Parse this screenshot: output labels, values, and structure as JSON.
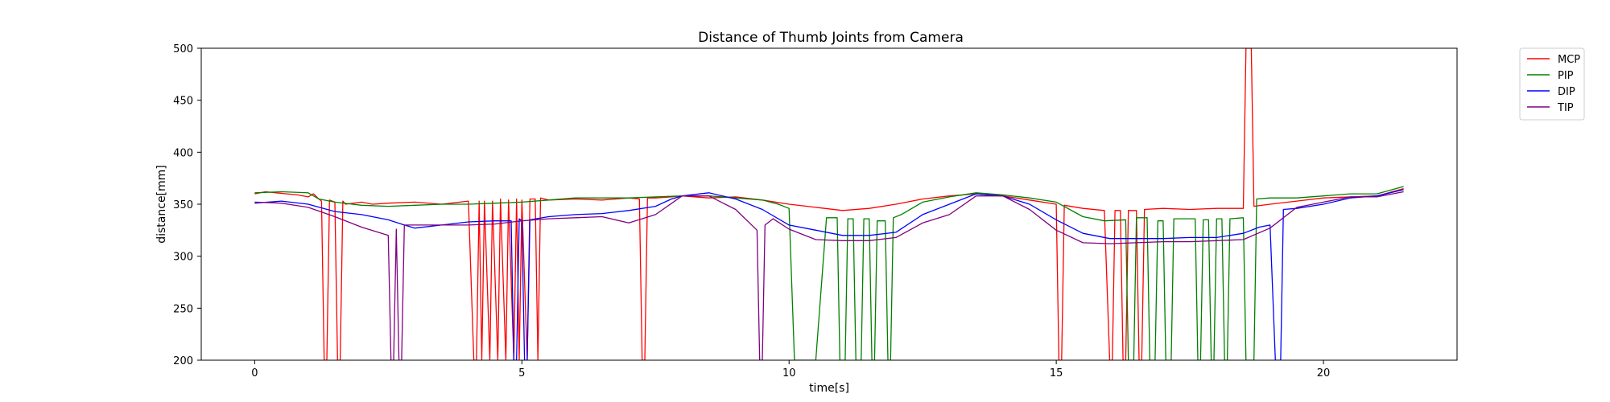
{
  "chart_data": {
    "type": "line",
    "title": "Distance of Thumb Joints from Camera",
    "xlabel": "time[s]",
    "ylabel": "distance[mm]",
    "xlim": [
      -1.0,
      22.5
    ],
    "ylim": [
      200,
      500
    ],
    "xticks": [
      0,
      5,
      10,
      15,
      20
    ],
    "yticks": [
      200,
      250,
      300,
      350,
      400,
      450,
      500
    ],
    "grid": false,
    "legend_position": "outside-top-right",
    "series": [
      {
        "name": "MCP",
        "color": "#ff0000",
        "points": [
          [
            0,
            360
          ],
          [
            0.2,
            362
          ],
          [
            0.4,
            361
          ],
          [
            0.6,
            360
          ],
          [
            0.8,
            359
          ],
          [
            1.0,
            357
          ],
          [
            1.1,
            360
          ],
          [
            1.2,
            355
          ],
          [
            1.25,
            353
          ],
          [
            1.3,
            200
          ],
          [
            1.35,
            200
          ],
          [
            1.4,
            354
          ],
          [
            1.5,
            352
          ],
          [
            1.55,
            200
          ],
          [
            1.6,
            200
          ],
          [
            1.65,
            353
          ],
          [
            1.7,
            350
          ],
          [
            2.0,
            352
          ],
          [
            2.2,
            350
          ],
          [
            2.5,
            351
          ],
          [
            3.0,
            352
          ],
          [
            3.5,
            350
          ],
          [
            4.0,
            353
          ],
          [
            4.1,
            200
          ],
          [
            4.15,
            200
          ],
          [
            4.2,
            353
          ],
          [
            4.25,
            200
          ],
          [
            4.3,
            353
          ],
          [
            4.4,
            200
          ],
          [
            4.45,
            353
          ],
          [
            4.55,
            200
          ],
          [
            4.6,
            355
          ],
          [
            4.7,
            200
          ],
          [
            4.75,
            354
          ],
          [
            4.85,
            200
          ],
          [
            4.9,
            355
          ],
          [
            4.95,
            200
          ],
          [
            5.0,
            354
          ],
          [
            5.1,
            200
          ],
          [
            5.15,
            355
          ],
          [
            5.25,
            355
          ],
          [
            5.3,
            200
          ],
          [
            5.35,
            356
          ],
          [
            5.5,
            354
          ],
          [
            6.0,
            355
          ],
          [
            6.5,
            354
          ],
          [
            7.0,
            356
          ],
          [
            7.2,
            355
          ],
          [
            7.25,
            200
          ],
          [
            7.3,
            200
          ],
          [
            7.35,
            356
          ],
          [
            7.5,
            356
          ],
          [
            7.8,
            357
          ],
          [
            8.0,
            358
          ],
          [
            8.5,
            356
          ],
          [
            9.0,
            357
          ],
          [
            9.5,
            354
          ],
          [
            10.0,
            350
          ],
          [
            10.5,
            347
          ],
          [
            11.0,
            344
          ],
          [
            11.5,
            346
          ],
          [
            12.0,
            350
          ],
          [
            12.5,
            355
          ],
          [
            13.0,
            358
          ],
          [
            13.5,
            360
          ],
          [
            14.0,
            358
          ],
          [
            14.5,
            354
          ],
          [
            15.0,
            350
          ],
          [
            15.05,
            200
          ],
          [
            15.1,
            200
          ],
          [
            15.15,
            349
          ],
          [
            15.5,
            346
          ],
          [
            15.9,
            344
          ],
          [
            16.0,
            200
          ],
          [
            16.05,
            200
          ],
          [
            16.1,
            344
          ],
          [
            16.2,
            344
          ],
          [
            16.25,
            200
          ],
          [
            16.3,
            200
          ],
          [
            16.35,
            344
          ],
          [
            16.5,
            344
          ],
          [
            16.55,
            200
          ],
          [
            16.6,
            200
          ],
          [
            16.65,
            345
          ],
          [
            17.0,
            346
          ],
          [
            17.5,
            345
          ],
          [
            18.0,
            346
          ],
          [
            18.5,
            346
          ],
          [
            18.55,
            500
          ],
          [
            18.65,
            500
          ],
          [
            18.7,
            348
          ],
          [
            19.0,
            350
          ],
          [
            19.5,
            353
          ],
          [
            20.0,
            356
          ],
          [
            20.5,
            357
          ],
          [
            21.0,
            358
          ],
          [
            21.5,
            365
          ]
        ]
      },
      {
        "name": "PIP",
        "color": "#008000",
        "points": [
          [
            0,
            361
          ],
          [
            0.5,
            362
          ],
          [
            1.0,
            361
          ],
          [
            1.2,
            355
          ],
          [
            1.5,
            352
          ],
          [
            2.0,
            349
          ],
          [
            2.5,
            348
          ],
          [
            3.0,
            349
          ],
          [
            3.5,
            350
          ],
          [
            4.0,
            350
          ],
          [
            4.5,
            351
          ],
          [
            5.0,
            352
          ],
          [
            5.5,
            354
          ],
          [
            6.0,
            356
          ],
          [
            6.5,
            356
          ],
          [
            7.0,
            356
          ],
          [
            7.5,
            357
          ],
          [
            8.0,
            358
          ],
          [
            8.5,
            358
          ],
          [
            9.0,
            356
          ],
          [
            9.5,
            354
          ],
          [
            9.8,
            350
          ],
          [
            10.0,
            346
          ],
          [
            10.1,
            200
          ],
          [
            10.5,
            200
          ],
          [
            10.7,
            337
          ],
          [
            10.9,
            337
          ],
          [
            10.95,
            200
          ],
          [
            11.05,
            200
          ],
          [
            11.1,
            336
          ],
          [
            11.2,
            336
          ],
          [
            11.25,
            200
          ],
          [
            11.35,
            200
          ],
          [
            11.4,
            336
          ],
          [
            11.5,
            336
          ],
          [
            11.55,
            200
          ],
          [
            11.6,
            200
          ],
          [
            11.65,
            334
          ],
          [
            11.8,
            334
          ],
          [
            11.85,
            200
          ],
          [
            11.9,
            200
          ],
          [
            11.95,
            337
          ],
          [
            12.1,
            340
          ],
          [
            12.5,
            352
          ],
          [
            13.0,
            357
          ],
          [
            13.5,
            361
          ],
          [
            14.0,
            359
          ],
          [
            14.5,
            356
          ],
          [
            15.0,
            352
          ],
          [
            15.5,
            338
          ],
          [
            15.9,
            334
          ],
          [
            16.3,
            335
          ],
          [
            16.35,
            200
          ],
          [
            16.45,
            200
          ],
          [
            16.5,
            337
          ],
          [
            16.7,
            337
          ],
          [
            16.75,
            200
          ],
          [
            16.85,
            200
          ],
          [
            16.9,
            334
          ],
          [
            17.0,
            334
          ],
          [
            17.05,
            200
          ],
          [
            17.15,
            200
          ],
          [
            17.2,
            336
          ],
          [
            17.6,
            336
          ],
          [
            17.65,
            200
          ],
          [
            17.7,
            200
          ],
          [
            17.75,
            335
          ],
          [
            17.85,
            335
          ],
          [
            17.9,
            200
          ],
          [
            17.95,
            200
          ],
          [
            18.0,
            336
          ],
          [
            18.1,
            336
          ],
          [
            18.15,
            200
          ],
          [
            18.2,
            200
          ],
          [
            18.25,
            336
          ],
          [
            18.5,
            337
          ],
          [
            18.55,
            200
          ],
          [
            18.7,
            200
          ],
          [
            18.75,
            355
          ],
          [
            19.0,
            356
          ],
          [
            19.5,
            356
          ],
          [
            20.0,
            358
          ],
          [
            20.5,
            360
          ],
          [
            21.0,
            360
          ],
          [
            21.5,
            367
          ]
        ]
      },
      {
        "name": "DIP",
        "color": "#0000ff",
        "points": [
          [
            0,
            351
          ],
          [
            0.5,
            353
          ],
          [
            1.0,
            350
          ],
          [
            1.5,
            343
          ],
          [
            2.0,
            340
          ],
          [
            2.5,
            335
          ],
          [
            2.8,
            330
          ],
          [
            3.0,
            327
          ],
          [
            3.5,
            330
          ],
          [
            4.0,
            333
          ],
          [
            4.5,
            334
          ],
          [
            4.8,
            334
          ],
          [
            4.85,
            200
          ],
          [
            4.9,
            200
          ],
          [
            4.95,
            336
          ],
          [
            5.0,
            334
          ],
          [
            5.05,
            200
          ],
          [
            5.1,
            200
          ],
          [
            5.15,
            335
          ],
          [
            5.5,
            338
          ],
          [
            6.0,
            340
          ],
          [
            6.5,
            341
          ],
          [
            7.0,
            344
          ],
          [
            7.5,
            348
          ],
          [
            7.8,
            355
          ],
          [
            8.0,
            358
          ],
          [
            8.5,
            361
          ],
          [
            9.0,
            355
          ],
          [
            9.5,
            345
          ],
          [
            10.0,
            330
          ],
          [
            10.5,
            325
          ],
          [
            11.0,
            320
          ],
          [
            11.5,
            320
          ],
          [
            12.0,
            323
          ],
          [
            12.5,
            340
          ],
          [
            13.0,
            350
          ],
          [
            13.5,
            360
          ],
          [
            14.0,
            358
          ],
          [
            14.5,
            350
          ],
          [
            15.0,
            335
          ],
          [
            15.5,
            322
          ],
          [
            16.0,
            317
          ],
          [
            16.5,
            317
          ],
          [
            17.0,
            317
          ],
          [
            17.5,
            318
          ],
          [
            18.0,
            318
          ],
          [
            18.5,
            322
          ],
          [
            18.8,
            328
          ],
          [
            19.0,
            330
          ],
          [
            19.1,
            200
          ],
          [
            19.2,
            200
          ],
          [
            19.25,
            345
          ],
          [
            19.5,
            346
          ],
          [
            20.0,
            350
          ],
          [
            20.5,
            356
          ],
          [
            21.0,
            358
          ],
          [
            21.5,
            364
          ]
        ]
      },
      {
        "name": "TIP",
        "color": "#800080",
        "points": [
          [
            0,
            352
          ],
          [
            0.5,
            351
          ],
          [
            1.0,
            347
          ],
          [
            1.5,
            338
          ],
          [
            2.0,
            328
          ],
          [
            2.5,
            320
          ],
          [
            2.55,
            200
          ],
          [
            2.6,
            200
          ],
          [
            2.65,
            326
          ],
          [
            2.7,
            200
          ],
          [
            2.75,
            200
          ],
          [
            2.8,
            330
          ],
          [
            3.0,
            330
          ],
          [
            3.5,
            330
          ],
          [
            4.0,
            330
          ],
          [
            4.5,
            331
          ],
          [
            5.0,
            334
          ],
          [
            5.5,
            336
          ],
          [
            6.0,
            337
          ],
          [
            6.5,
            338
          ],
          [
            7.0,
            332
          ],
          [
            7.5,
            340
          ],
          [
            8.0,
            358
          ],
          [
            8.5,
            358
          ],
          [
            9.0,
            345
          ],
          [
            9.4,
            325
          ],
          [
            9.45,
            200
          ],
          [
            9.5,
            200
          ],
          [
            9.55,
            330
          ],
          [
            9.7,
            336
          ],
          [
            10.0,
            326
          ],
          [
            10.5,
            316
          ],
          [
            11.0,
            315
          ],
          [
            11.5,
            315
          ],
          [
            12.0,
            318
          ],
          [
            12.5,
            332
          ],
          [
            13.0,
            340
          ],
          [
            13.5,
            358
          ],
          [
            14.0,
            358
          ],
          [
            14.5,
            345
          ],
          [
            15.0,
            325
          ],
          [
            15.5,
            313
          ],
          [
            16.0,
            312
          ],
          [
            16.5,
            313
          ],
          [
            17.0,
            314
          ],
          [
            17.5,
            314
          ],
          [
            18.0,
            315
          ],
          [
            18.5,
            316
          ],
          [
            19.0,
            327
          ],
          [
            19.5,
            347
          ],
          [
            20.0,
            352
          ],
          [
            20.5,
            357
          ],
          [
            21.0,
            357
          ],
          [
            21.5,
            362
          ]
        ]
      }
    ]
  }
}
